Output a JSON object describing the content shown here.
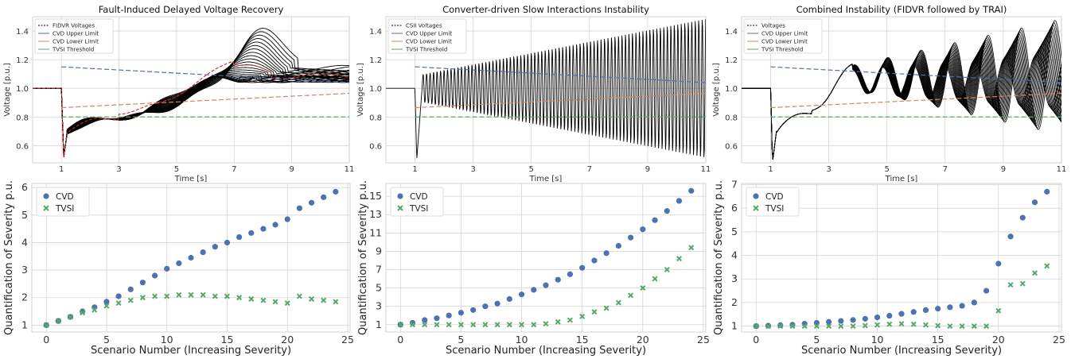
{
  "chart_data": [
    {
      "type": "line",
      "title": "Fault-Induced Delayed Voltage Recovery",
      "xlabel": "Time [s]",
      "ylabel": "Voltage [p.u.]",
      "xlim": [
        0,
        11
      ],
      "ylim": [
        0.48,
        1.5
      ],
      "xticks": [
        1,
        3,
        5,
        7,
        9,
        11
      ],
      "yticks": [
        0.6,
        0.8,
        1.0,
        1.2,
        1.4
      ],
      "grid": true,
      "legend_position": "top-left",
      "legend": [
        "FIDVR Voltages",
        "CVD Upper Limit",
        "CVD Lower Limit",
        "TVSI Threshold"
      ],
      "series": [
        {
          "name": "CVD Upper Limit",
          "x": [
            1,
            11
          ],
          "y": [
            1.15,
            1.04
          ]
        },
        {
          "name": "CVD Lower Limit",
          "x": [
            1,
            11
          ],
          "y": [
            0.865,
            0.965
          ]
        },
        {
          "name": "TVSI Threshold",
          "x": [
            1,
            11
          ],
          "y": [
            0.8,
            0.8
          ]
        }
      ],
      "fault_time": 1,
      "prefault_voltage": 1.0,
      "trace_count": 25,
      "colors": {
        "voltages": "#000000",
        "highlight": "#d62728",
        "upper": "#4c72b0",
        "lower": "#dd8452",
        "tvsi": "#55a868"
      }
    },
    {
      "type": "line",
      "title": "Converter-driven Slow Interactions Instability",
      "xlabel": "Time [s]",
      "ylabel": "Voltage [p.u.]",
      "xlim": [
        0,
        11
      ],
      "ylim": [
        0.48,
        1.5
      ],
      "xticks": [
        1,
        3,
        5,
        7,
        9,
        11
      ],
      "yticks": [
        0.6,
        0.8,
        1.0,
        1.2,
        1.4
      ],
      "grid": true,
      "legend_position": "top-left",
      "legend": [
        "CSII Voltages",
        "CVD Upper Limit",
        "CVD Lower Limit",
        "TVSI Threshold"
      ],
      "series": [
        {
          "name": "CVD Upper Limit",
          "x": [
            1,
            11
          ],
          "y": [
            1.15,
            1.04
          ]
        },
        {
          "name": "CVD Lower Limit",
          "x": [
            1,
            11
          ],
          "y": [
            0.865,
            0.965
          ]
        },
        {
          "name": "TVSI Threshold",
          "x": [
            1,
            11
          ],
          "y": [
            0.8,
            0.8
          ]
        }
      ],
      "fault_time": 1,
      "prefault_voltage": 1.0,
      "oscillation_period": 0.12,
      "oscillation_amplitude_start": 0.1,
      "oscillation_amplitude_end": 0.5,
      "colors": {
        "voltages": "#000000",
        "upper": "#4c72b0",
        "lower": "#dd8452",
        "tvsi": "#55a868"
      }
    },
    {
      "type": "line",
      "title": "Combined Instability (FIDVR followed by TRAI)",
      "xlabel": "Time [s]",
      "ylabel": "Voltage [p.u.]",
      "xlim": [
        0,
        11
      ],
      "ylim": [
        0.48,
        1.5
      ],
      "xticks": [
        1,
        3,
        5,
        7,
        9,
        11
      ],
      "yticks": [
        0.6,
        0.8,
        1.0,
        1.2,
        1.4
      ],
      "grid": true,
      "legend_position": "top-left",
      "legend": [
        "Voltages",
        "CVD Upper Limit",
        "CVD Lower Limit",
        "TVSI Threshold"
      ],
      "series": [
        {
          "name": "CVD Upper Limit",
          "x": [
            1,
            11
          ],
          "y": [
            1.15,
            1.04
          ]
        },
        {
          "name": "CVD Lower Limit",
          "x": [
            1,
            11
          ],
          "y": [
            0.865,
            0.965
          ]
        },
        {
          "name": "TVSI Threshold",
          "x": [
            1,
            11
          ],
          "y": [
            0.8,
            0.8
          ]
        }
      ],
      "fault_time": 1,
      "prefault_voltage": 1.0,
      "trace_count": 18,
      "colors": {
        "voltages": "#000000",
        "upper": "#4c72b0",
        "lower": "#dd8452",
        "tvsi": "#55a868"
      }
    },
    {
      "type": "scatter",
      "xlabel": "Scenario Number (Increasing Severity)",
      "ylabel": "Quantification of Severity p.u.",
      "xlim": [
        -1.2,
        25.2
      ],
      "ylim": [
        0.75,
        6.15
      ],
      "xticks": [
        0,
        5,
        10,
        15,
        20,
        25
      ],
      "yticks": [
        1,
        2,
        3,
        4,
        5,
        6
      ],
      "grid": true,
      "legend_position": "top-left",
      "x": [
        0,
        1,
        2,
        3,
        4,
        5,
        6,
        7,
        8,
        9,
        10,
        11,
        12,
        13,
        14,
        15,
        16,
        17,
        18,
        19,
        20,
        21,
        22,
        23,
        24
      ],
      "series": [
        {
          "name": "CVD",
          "marker": "circle",
          "color": "#4c72b0",
          "values": [
            1.0,
            1.15,
            1.3,
            1.5,
            1.65,
            1.85,
            2.05,
            2.3,
            2.55,
            2.8,
            3.05,
            3.25,
            3.45,
            3.65,
            3.85,
            4.0,
            4.2,
            4.35,
            4.5,
            4.65,
            4.85,
            5.25,
            5.45,
            5.65,
            5.85
          ]
        },
        {
          "name": "TVSI",
          "marker": "x",
          "color": "#55a868",
          "values": [
            1.0,
            1.15,
            1.3,
            1.45,
            1.55,
            1.7,
            1.8,
            1.9,
            2.0,
            2.05,
            2.05,
            2.1,
            2.1,
            2.1,
            2.05,
            2.05,
            2.0,
            1.95,
            1.9,
            1.85,
            1.8,
            2.05,
            1.95,
            1.9,
            1.85
          ]
        }
      ]
    },
    {
      "type": "scatter",
      "xlabel": "Scenario Number (Increasing Severity)",
      "ylabel": "Quantification of Severity p.u.",
      "xlim": [
        -1.2,
        25.2
      ],
      "ylim": [
        0.2,
        16.4
      ],
      "xticks": [
        0,
        5,
        10,
        15,
        20,
        25
      ],
      "yticks": [
        1,
        3,
        5,
        7,
        9,
        11,
        13,
        15
      ],
      "grid": true,
      "legend_position": "top-left",
      "x": [
        0,
        1,
        2,
        3,
        4,
        5,
        6,
        7,
        8,
        9,
        10,
        11,
        12,
        13,
        14,
        15,
        16,
        17,
        18,
        19,
        20,
        21,
        22,
        23,
        24
      ],
      "series": [
        {
          "name": "CVD",
          "marker": "circle",
          "color": "#4c72b0",
          "values": [
            1.0,
            1.2,
            1.5,
            1.7,
            2.0,
            2.3,
            2.6,
            3.0,
            3.3,
            3.8,
            4.3,
            4.8,
            5.3,
            5.9,
            6.5,
            7.2,
            8.0,
            8.8,
            9.6,
            10.5,
            11.4,
            12.4,
            13.4,
            14.5,
            15.6
          ]
        },
        {
          "name": "TVSI",
          "marker": "x",
          "color": "#55a868",
          "values": [
            1.0,
            1.0,
            1.0,
            1.0,
            1.0,
            1.0,
            1.0,
            1.0,
            1.0,
            1.0,
            1.0,
            1.0,
            1.1,
            1.3,
            1.5,
            1.9,
            2.4,
            2.8,
            3.4,
            4.2,
            5.0,
            6.0,
            7.0,
            8.2,
            9.4
          ]
        }
      ]
    },
    {
      "type": "scatter",
      "xlabel": "Scenario Number (Increasing Severity)",
      "ylabel": "Quantification of Severity p.u.",
      "xlim": [
        -1.2,
        25.2
      ],
      "ylim": [
        0.75,
        7.05
      ],
      "xticks": [
        0,
        5,
        10,
        15,
        20,
        25
      ],
      "yticks": [
        1,
        2,
        3,
        4,
        5,
        6,
        7
      ],
      "grid": true,
      "legend_position": "top-left",
      "x": [
        0,
        1,
        2,
        3,
        4,
        5,
        6,
        7,
        8,
        9,
        10,
        11,
        12,
        13,
        14,
        15,
        16,
        17,
        18,
        19,
        20,
        21,
        22,
        23,
        24
      ],
      "series": [
        {
          "name": "CVD",
          "marker": "circle",
          "color": "#4c72b0",
          "values": [
            1.0,
            1.02,
            1.04,
            1.06,
            1.1,
            1.14,
            1.18,
            1.22,
            1.26,
            1.31,
            1.37,
            1.44,
            1.52,
            1.6,
            1.68,
            1.74,
            1.8,
            1.86,
            2.0,
            2.5,
            3.65,
            4.8,
            5.6,
            6.25,
            6.7
          ]
        },
        {
          "name": "TVSI",
          "marker": "x",
          "color": "#55a868",
          "values": [
            1.0,
            1.0,
            1.0,
            1.0,
            1.0,
            1.0,
            1.0,
            1.0,
            1.0,
            1.02,
            1.05,
            1.08,
            1.1,
            1.08,
            1.05,
            1.02,
            1.0,
            1.0,
            1.0,
            1.0,
            1.65,
            2.75,
            2.8,
            3.25,
            3.55
          ]
        }
      ]
    }
  ]
}
